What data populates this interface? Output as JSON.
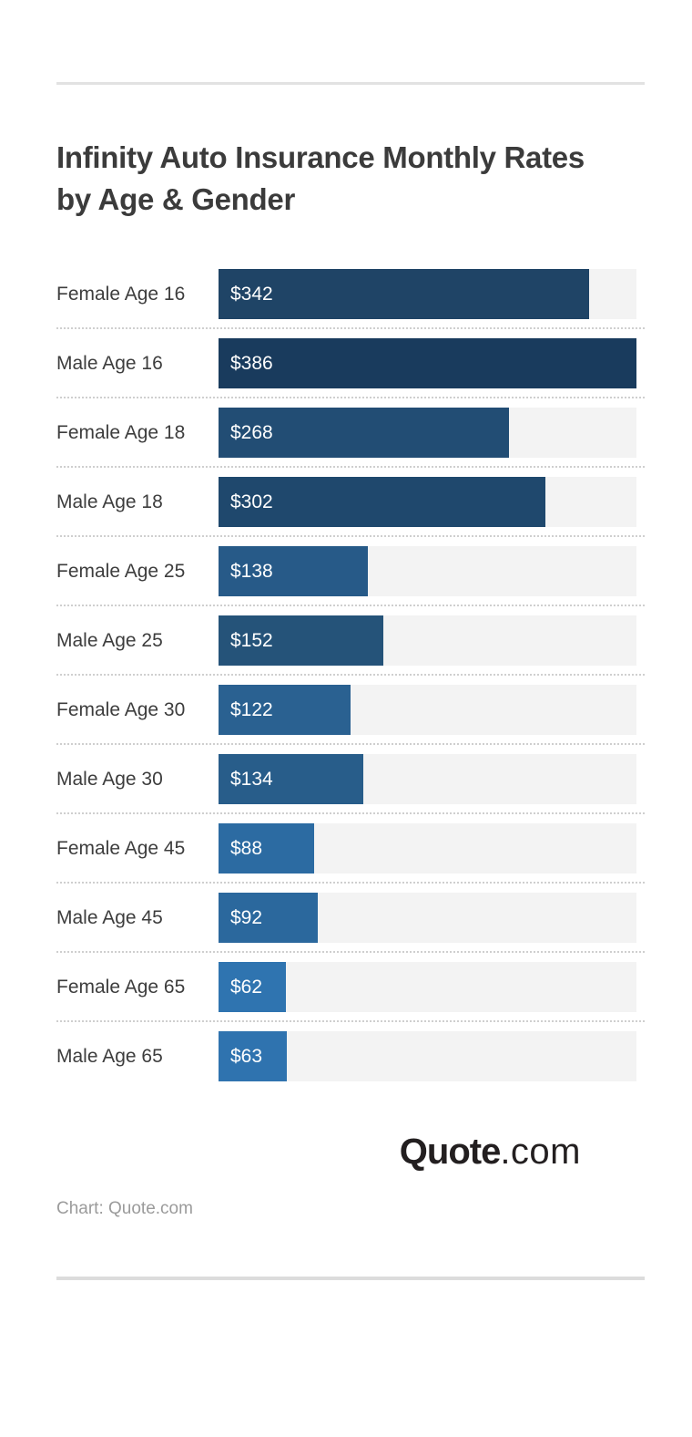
{
  "branding": {
    "logo_bold": "Quote",
    "logo_rest": ".com",
    "caption": "Chart: Quote.com"
  },
  "colors": {
    "title": "#3b3b3b",
    "label": "#3d3d3d",
    "value_text": "#ffffff",
    "track": "#f3f3f3",
    "dotted_separator": "#cfcfcf",
    "divider": "#e2e2e2",
    "caption": "#9b9b9b",
    "logo": "#231f20"
  },
  "chart_data": {
    "type": "bar",
    "orientation": "horizontal",
    "title": "Infinity Auto Insurance Monthly Rates by Age & Gender",
    "title_lines": [
      "Infinity Auto Insurance Monthly Rates",
      "by Age & Gender"
    ],
    "xlabel": "",
    "ylabel": "",
    "xlim": [
      0,
      386
    ],
    "grid": false,
    "legend": false,
    "value_prefix": "$",
    "categories": [
      "Female Age 16",
      "Male Age 16",
      "Female Age 18",
      "Male Age 18",
      "Female Age 25",
      "Male Age 25",
      "Female Age 30",
      "Male Age 30",
      "Female Age 45",
      "Male Age 45",
      "Female Age 65",
      "Male Age 65"
    ],
    "values": [
      342,
      386,
      268,
      302,
      138,
      152,
      122,
      134,
      88,
      92,
      62,
      63
    ],
    "value_labels": [
      "$342",
      "$386",
      "$268",
      "$302",
      "$138",
      "$152",
      "$122",
      "$134",
      "$88",
      "$92",
      "$62",
      "$63"
    ],
    "bar_colors": [
      "#1f4466",
      "#193b5d",
      "#224d74",
      "#1f486d",
      "#275a88",
      "#255379",
      "#2a6191",
      "#285d8a",
      "#2c6ba2",
      "#2b689d",
      "#2f74b0",
      "#2f73af"
    ]
  }
}
